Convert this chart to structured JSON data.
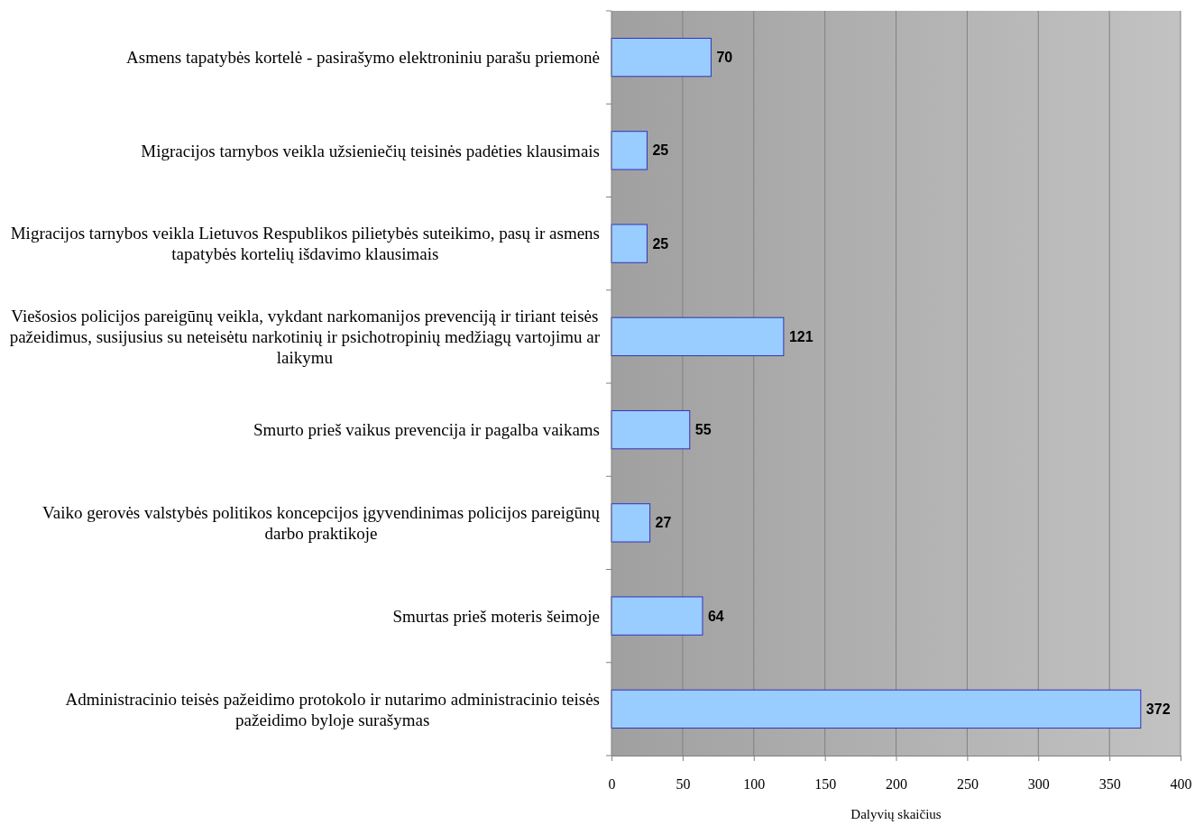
{
  "chart_data": {
    "type": "bar",
    "orientation": "horizontal",
    "categories": [
      "Asmens tapatybės kortelė - pasirašymo elektroniniu parašu priemonė",
      "Migracijos tarnybos veikla užsieniečių teisinės padėties klausimais",
      "Migracijos tarnybos veikla Lietuvos Respublikos pilietybės suteikimo, pasų ir asmens tapatybės kortelių išdavimo klausimais",
      "Viešosios policijos pareigūnų veikla, vykdant narkomanijos prevenciją ir tiriant teisės pažeidimus, susijusius su neteisėtu narkotinių ir psichotropinių medžiagų vartojimu ar laikymu",
      "Smurto prieš vaikus prevencija ir pagalba vaikams",
      "Vaiko gerovės valstybės politikos koncepcijos įgyvendinimas policijos pareigūnų darbo praktikoje",
      "Smurtas prieš moteris šeimoje",
      "Administracinio teisės pažeidimo protokolo ir nutarimo administracinio teisės pažeidimo byloje surašymas"
    ],
    "values": [
      70,
      25,
      25,
      121,
      55,
      27,
      64,
      372
    ],
    "color": "#99ccff",
    "xlabel": "Dalyvių skaičius",
    "xlim": [
      0,
      400
    ],
    "xticks": [
      0,
      50,
      100,
      150,
      200,
      250,
      300,
      350,
      400
    ],
    "grid": "x",
    "data_labels": true
  }
}
